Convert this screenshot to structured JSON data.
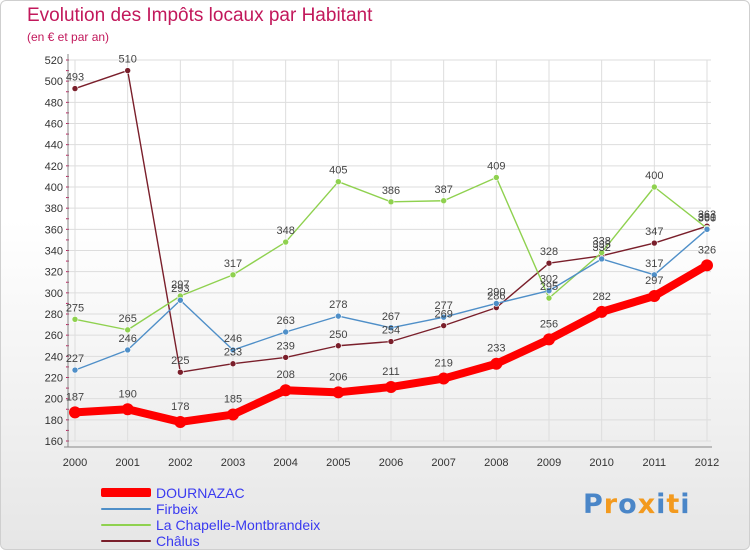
{
  "chart_data": {
    "type": "line",
    "title": "Evolution des Impôts locaux par Habitant",
    "subtitle": "(en € et par an)",
    "x": [
      "2000",
      "2001",
      "2002",
      "2003",
      "2004",
      "2005",
      "2006",
      "2007",
      "2008",
      "2009",
      "2010",
      "2011",
      "2012"
    ],
    "yticks": [
      160,
      180,
      200,
      220,
      240,
      260,
      280,
      300,
      320,
      340,
      360,
      380,
      400,
      420,
      440,
      460,
      480,
      500,
      520
    ],
    "ylim": [
      160,
      520
    ],
    "grid": true,
    "series": [
      {
        "name": "DOURNAZAC",
        "color": "#ff0000",
        "width": 8,
        "radius": 6,
        "values": [
          187,
          190,
          178,
          185,
          208,
          206,
          211,
          219,
          233,
          256,
          282,
          297,
          326
        ],
        "labels": [
          "187",
          "190",
          "178",
          "185",
          "208",
          "206",
          "211",
          "219",
          "233",
          "256",
          "282",
          "297",
          "326"
        ]
      },
      {
        "name": "Firbeix",
        "color": "#4f8fc8",
        "width": 1.4,
        "radius": 3,
        "values": [
          227,
          246,
          293,
          246,
          263,
          278,
          267,
          277,
          290,
          302,
          332,
          317,
          360
        ],
        "labels": [
          "227",
          "246",
          "293",
          "246",
          "263",
          "278",
          "267",
          "277",
          "290",
          "302",
          "332",
          "317",
          "360"
        ]
      },
      {
        "name": "La Chapelle-Montbrandeix",
        "color": "#8fd14f",
        "width": 1.4,
        "radius": 3,
        "values": [
          275,
          265,
          297,
          317,
          348,
          405,
          386,
          387,
          409,
          295,
          338,
          400,
          361
        ],
        "labels": [
          "275",
          "265",
          "297",
          "317",
          "348",
          "405",
          "386",
          "387",
          "409",
          "295",
          "338",
          "400",
          "361"
        ]
      },
      {
        "name": "Châlus",
        "color": "#7a1f2b",
        "width": 1.4,
        "radius": 3,
        "values": [
          493,
          510,
          225,
          233,
          239,
          250,
          254,
          269,
          286,
          328,
          335,
          347,
          363
        ],
        "labels": [
          "493",
          "510",
          "225",
          "233",
          "239",
          "250",
          "254",
          "269",
          "286",
          "328",
          "335",
          "347",
          "363"
        ]
      }
    ]
  },
  "legend": {
    "items": [
      {
        "label": "DOURNAZAC",
        "color": "#ff0000"
      },
      {
        "label": "Firbeix",
        "color": "#4f8fc8"
      },
      {
        "label": "La Chapelle-Montbrandeix",
        "color": "#8fd14f"
      },
      {
        "label": "Châlus",
        "color": "#7a1f2b"
      }
    ]
  },
  "logo": {
    "text": "Proxiti",
    "letter_colors": [
      "#4a86c8",
      "#f39a1e",
      "#4a86c8",
      "#f39a1e",
      "#4a86c8",
      "#f39a1e",
      "#4a86c8"
    ]
  }
}
